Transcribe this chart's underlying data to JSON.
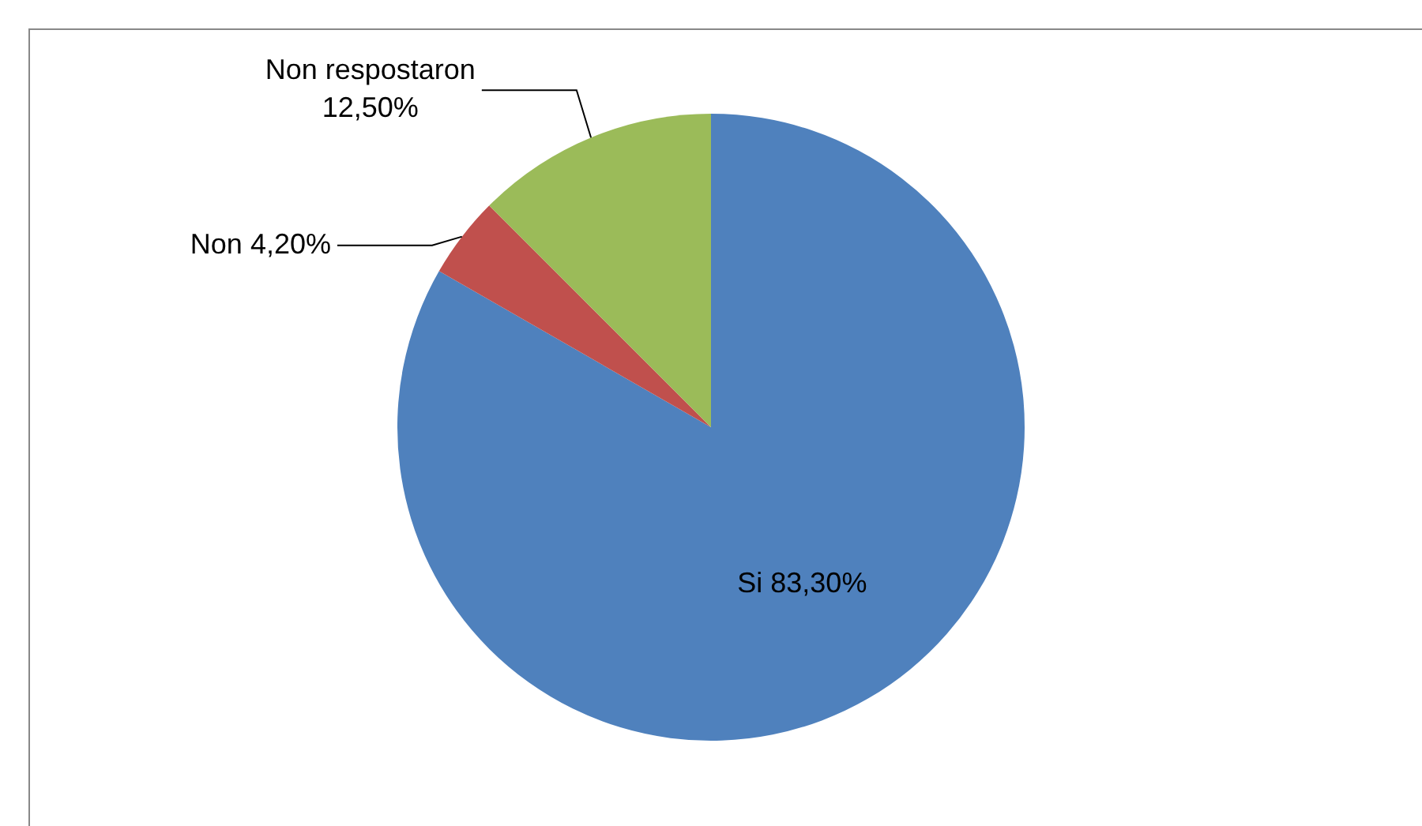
{
  "chart_data": {
    "type": "pie",
    "categories": [
      "Si",
      "Non",
      "Non respostaron"
    ],
    "values": [
      83.3,
      4.2,
      12.5
    ],
    "colors": [
      "#4f81bd",
      "#c0504d",
      "#9bbb59"
    ],
    "value_labels": [
      "83,30%",
      "4,20%",
      "12,50%"
    ],
    "legend": false
  }
}
